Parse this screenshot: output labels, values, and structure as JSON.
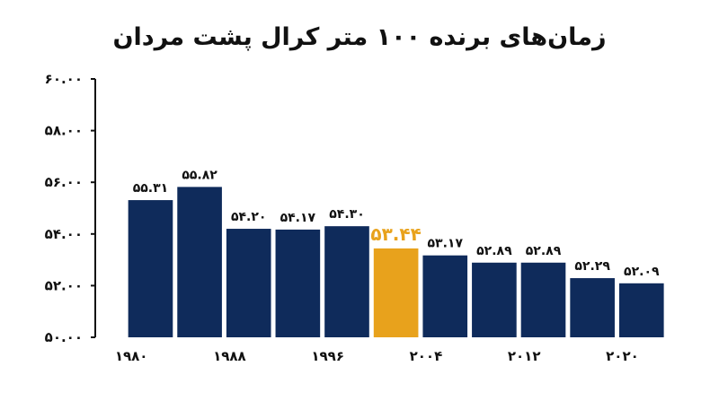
{
  "chart_data": {
    "type": "bar",
    "title": "زمان‌های برنده ۱۰۰ متر کرال پشت مردان",
    "y_tick_labels": [
      "۶۰.۰۰",
      "۵۸.۰۰",
      "۵۶.۰۰",
      "۵۴.۰۰",
      "۵۲.۰۰",
      "۵۰.۰۰"
    ],
    "y_ticks": [
      60,
      58,
      56,
      54,
      52,
      50
    ],
    "ylim": [
      50,
      60
    ],
    "x_tick_labels": [
      "۱۹۸۰",
      "۱۹۸۸",
      "۱۹۹۶",
      "۲۰۰۴",
      "۲۰۱۲",
      "۲۰۲۰"
    ],
    "x_ticks": [
      1980,
      1988,
      1996,
      2004,
      2012,
      2020
    ],
    "xlim": [
      1977.5,
      2023.7
    ],
    "bars": [
      {
        "start": 1980,
        "end": 1984,
        "value": 55.31,
        "label": "۵۵.۳۱"
      },
      {
        "start": 1984,
        "end": 1988,
        "value": 55.82,
        "label": "۵۵.۸۲"
      },
      {
        "start": 1988,
        "end": 1992,
        "value": 54.2,
        "label": "۵۴.۲۰"
      },
      {
        "start": 1992,
        "end": 1996,
        "value": 54.17,
        "label": "۵۴.۱۷"
      },
      {
        "start": 1996,
        "end": 2000,
        "value": 54.3,
        "label": "۵۴.۳۰"
      },
      {
        "start": 2000,
        "end": 2004,
        "value": 53.44,
        "label": "۵۳.۴۴",
        "highlight": true
      },
      {
        "start": 2004,
        "end": 2008,
        "value": 53.17,
        "label": "۵۳.۱۷"
      },
      {
        "start": 2008,
        "end": 2012,
        "value": 52.89,
        "label": "۵۲.۸۹"
      },
      {
        "start": 2012,
        "end": 2016,
        "value": 52.89,
        "label": "۵۲.۸۹"
      },
      {
        "start": 2016,
        "end": 2020,
        "value": 52.29,
        "label": "۵۲.۲۹"
      },
      {
        "start": 2020,
        "end": 2024,
        "value": 52.09,
        "label": "۵۲.۰۹"
      }
    ],
    "colors": {
      "bar": "#0f2b5b",
      "highlight": "#e8a21c",
      "axis": "#111111"
    },
    "grid": false,
    "legend": "none"
  }
}
